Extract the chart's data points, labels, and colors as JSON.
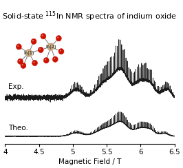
{
  "title": "Solid-state $^{115}$In NMR spectra of indium oxide",
  "xlabel": "Magnetic Field / T",
  "xlim": [
    4.0,
    6.5
  ],
  "xticks": [
    4.0,
    4.5,
    5.0,
    5.5,
    6.0,
    6.5
  ],
  "exp_label": "Exp.",
  "theo_label": "Theo.",
  "title_fontsize": 8,
  "axis_fontsize": 7.5,
  "label_fontsize": 7.5,
  "line_color": "#1a1a1a",
  "background_color": "#ffffff",
  "in_color": "#c4a882",
  "o_color": "#cc1100"
}
